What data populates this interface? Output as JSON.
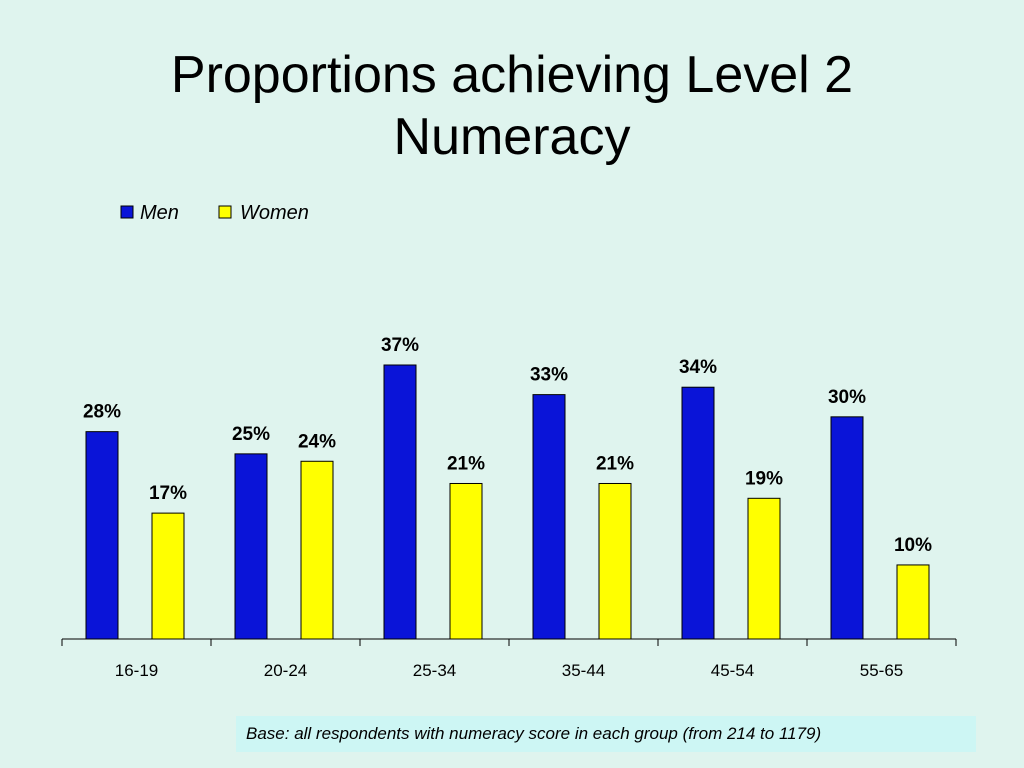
{
  "title": {
    "line1": "Proportions achieving Level 2",
    "line2": "Numeracy"
  },
  "colors": {
    "background": "#dff4ee",
    "men": "#0a14d8",
    "women": "#ffff00",
    "note_background": "#cdf6f4"
  },
  "chart_data": {
    "type": "bar",
    "categories": [
      "16-19",
      "20-24",
      "25-34",
      "35-44",
      "45-54",
      "55-65"
    ],
    "series": [
      {
        "name": "Men",
        "values": [
          28,
          25,
          37,
          33,
          34,
          30
        ],
        "labels": [
          "28%",
          "25%",
          "37%",
          "33%",
          "34%",
          "30%"
        ]
      },
      {
        "name": "Women",
        "values": [
          17,
          24,
          21,
          21,
          19,
          10
        ],
        "labels": [
          "17%",
          "24%",
          "21%",
          "21%",
          "19%",
          "10%"
        ]
      }
    ],
    "ylim": [
      0,
      40
    ],
    "grid": false,
    "legend_position": "top-left"
  },
  "note": "Base: all respondents with numeracy score in each group (from 214 to 1179)"
}
